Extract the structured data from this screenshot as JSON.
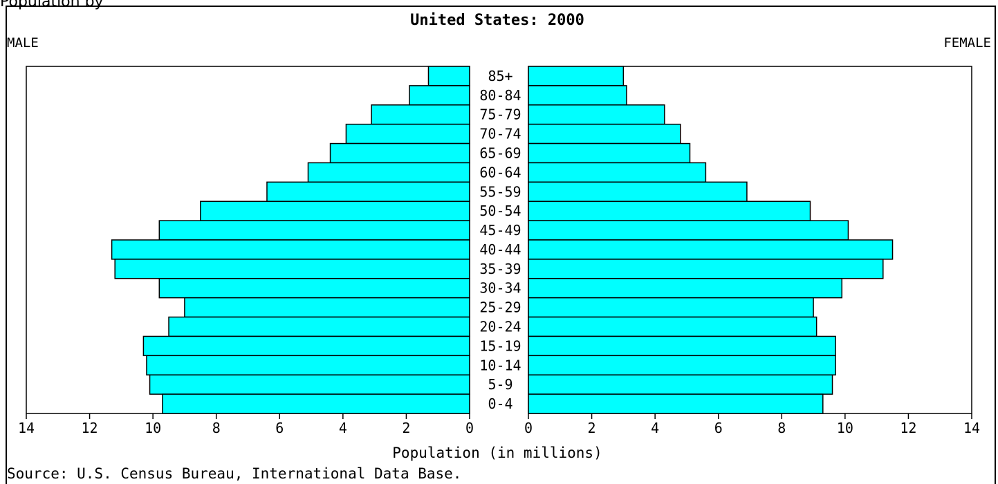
{
  "top_cut_text": "Population by",
  "chart_data": {
    "type": "bar",
    "subtype": "population-pyramid",
    "title": "United States: 2000",
    "left_label": "MALE",
    "right_label": "FEMALE",
    "xlabel": "Population (in millions)",
    "source": "Source: U.S. Census Bureau, International Data Base.",
    "xlim": [
      0,
      14
    ],
    "xticks": [
      0,
      2,
      4,
      6,
      8,
      10,
      12,
      14
    ],
    "categories": [
      "85+",
      "80-84",
      "75-79",
      "70-74",
      "65-69",
      "60-64",
      "55-59",
      "50-54",
      "45-49",
      "40-44",
      "35-39",
      "30-34",
      "25-29",
      "20-24",
      "15-19",
      "10-14",
      "5-9",
      "0-4"
    ],
    "series": [
      {
        "name": "MALE",
        "values": [
          1.3,
          1.9,
          3.1,
          3.9,
          4.4,
          5.1,
          6.4,
          8.5,
          9.8,
          11.3,
          11.2,
          9.8,
          9.0,
          9.5,
          10.3,
          10.2,
          10.1,
          9.7
        ]
      },
      {
        "name": "FEMALE",
        "values": [
          3.0,
          3.1,
          4.3,
          4.8,
          5.1,
          5.6,
          6.9,
          8.9,
          10.1,
          11.5,
          11.2,
          9.9,
          9.0,
          9.1,
          9.7,
          9.7,
          9.6,
          9.3
        ]
      }
    ],
    "bar_color": "#00FFFF",
    "grid": false
  }
}
